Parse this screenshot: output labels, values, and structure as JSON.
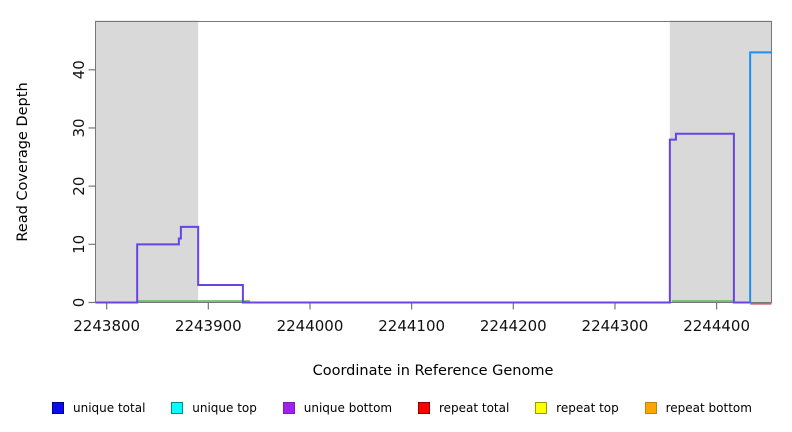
{
  "chart_data": {
    "type": "step-line",
    "title": "",
    "xlabel": "Coordinate in Reference Genome",
    "ylabel": "Read Coverage Depth",
    "xlim": [
      2243789,
      2244454
    ],
    "ylim": [
      0,
      48.3
    ],
    "x_ticks": [
      2243800,
      2243900,
      2244000,
      2244100,
      2244200,
      2244300,
      2244400
    ],
    "y_ticks": [
      0,
      10,
      20,
      30,
      40
    ],
    "grid": "off",
    "legend_position": "bottom",
    "shaded_regions": [
      {
        "name": "left-shaded-region",
        "x0": 2243789,
        "x1": 2243890,
        "color": "#d9d9d9"
      },
      {
        "name": "right-shaded-region",
        "x0": 2244354,
        "x1": 2244454,
        "color": "#d9d9d9"
      }
    ],
    "series": [
      {
        "name": "unique bottom coverage",
        "role": "main-step",
        "color": "#6843e6",
        "points": [
          [
            2243789,
            0
          ],
          [
            2243830,
            0
          ],
          [
            2243830,
            10
          ],
          [
            2243871,
            10
          ],
          [
            2243871,
            11
          ],
          [
            2243873,
            11
          ],
          [
            2243873,
            13
          ],
          [
            2243890,
            13
          ],
          [
            2243890,
            3
          ],
          [
            2243934,
            3
          ],
          [
            2243934,
            0
          ],
          [
            2244354,
            0
          ],
          [
            2244354,
            28
          ],
          [
            2244360,
            28
          ],
          [
            2244360,
            29
          ],
          [
            2244417,
            29
          ],
          [
            2244417,
            0
          ],
          [
            2244433,
            0
          ]
        ]
      },
      {
        "name": "unique top coverage",
        "role": "top-step",
        "color": "#1e8ef0",
        "points": [
          [
            2244433,
            0
          ],
          [
            2244433,
            43
          ],
          [
            2244454,
            43
          ]
        ]
      },
      {
        "name": "baseline marker left",
        "role": "under-marker-green",
        "color": "#5cbb5c",
        "points": [
          [
            2243830,
            0
          ],
          [
            2243941,
            0
          ]
        ]
      },
      {
        "name": "baseline marker right",
        "role": "under-marker-green",
        "color": "#5cbb5c",
        "points": [
          [
            2244356,
            0
          ],
          [
            2244416,
            0
          ]
        ]
      },
      {
        "name": "repeat coverage marker",
        "role": "under-marker-red",
        "color": "#d4596b",
        "points": [
          [
            2244433,
            0
          ],
          [
            2244454,
            0
          ]
        ]
      }
    ]
  },
  "legend": {
    "items": [
      {
        "label": "unique total",
        "fill": "#0d0deb",
        "border": "#000099"
      },
      {
        "label": "unique top",
        "fill": "#00ffff",
        "border": "#008b8b"
      },
      {
        "label": "unique bottom",
        "fill": "#a020f0",
        "border": "#7a1fb8"
      },
      {
        "label": "repeat total",
        "fill": "#ff0000",
        "border": "#8b0000"
      },
      {
        "label": "repeat top",
        "fill": "#ffff00",
        "border": "#9a9a00"
      },
      {
        "label": "repeat bottom",
        "fill": "#ffa500",
        "border": "#b8860b"
      }
    ]
  },
  "colors": {
    "box_border": "#777777",
    "tick": "#777777",
    "tick_label": "#111111"
  }
}
